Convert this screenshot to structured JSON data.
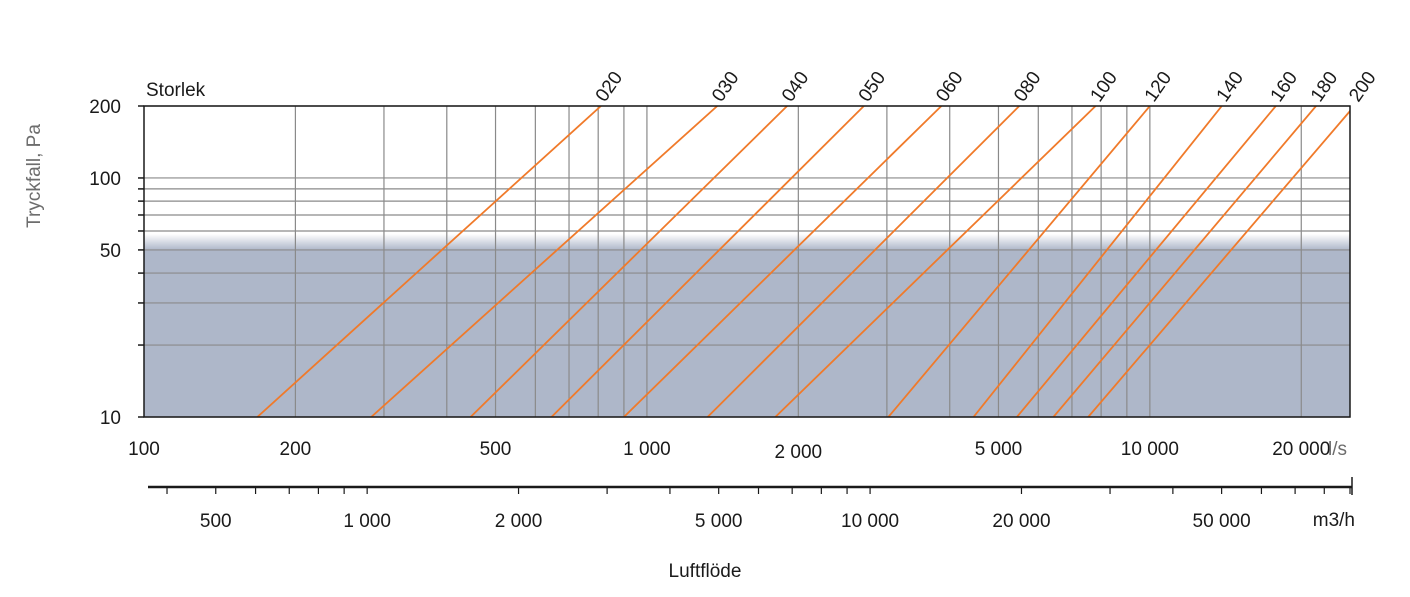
{
  "chart_data": {
    "type": "line",
    "xscale": "log",
    "yscale": "log",
    "ylabel": "Tryckfall, Pa",
    "xlabel": "Luftflöde",
    "series_header": "Storlek",
    "x_unit": "l/s",
    "x2_unit": "m3/h",
    "xlim": [
      100,
      25000
    ],
    "ylim": [
      10,
      200
    ],
    "x_ticks": [
      {
        "value": 100,
        "label": "100"
      },
      {
        "value": 200,
        "label": "200"
      },
      {
        "value": 500,
        "label": "500"
      },
      {
        "value": 1000,
        "label": "1 000"
      },
      {
        "value": 2000,
        "label": "2 000"
      },
      {
        "value": 5000,
        "label": "5 000"
      },
      {
        "value": 10000,
        "label": "10 000"
      },
      {
        "value": 20000,
        "label": "20 000"
      }
    ],
    "x_gridlines": [
      200,
      300,
      400,
      500,
      600,
      700,
      800,
      900,
      1000,
      2000,
      3000,
      4000,
      5000,
      6000,
      7000,
      8000,
      9000,
      10000,
      20000
    ],
    "y_ticks": [
      {
        "value": 10,
        "label": "10"
      },
      {
        "value": 50,
        "label": "50"
      },
      {
        "value": 100,
        "label": "100"
      },
      {
        "value": 200,
        "label": "200"
      }
    ],
    "y_minor_ticks": [
      20,
      30,
      40,
      60,
      70,
      80,
      90
    ],
    "x2_ticks": [
      {
        "value": 500,
        "label": "500"
      },
      {
        "value": 1000,
        "label": "1 000"
      },
      {
        "value": 2000,
        "label": "2 000"
      },
      {
        "value": 5000,
        "label": "5 000"
      },
      {
        "value": 10000,
        "label": "10 000"
      },
      {
        "value": 20000,
        "label": "20 000"
      },
      {
        "value": 50000,
        "label": "50 000"
      }
    ],
    "x2_minor_ticks": [
      400,
      600,
      700,
      800,
      900,
      3000,
      4000,
      6000,
      7000,
      8000,
      9000,
      30000,
      40000,
      60000,
      70000,
      80000,
      90000
    ],
    "shaded_region": {
      "y_from": 10,
      "y_to": 50,
      "color": "#aeb7c9"
    },
    "line_color": "#f07a2a",
    "series": [
      {
        "name": "020",
        "points": [
          [
            168,
            10
          ],
          [
            810,
            200
          ]
        ]
      },
      {
        "name": "030",
        "points": [
          [
            283,
            10
          ],
          [
            1380,
            200
          ]
        ]
      },
      {
        "name": "040",
        "points": [
          [
            446,
            10
          ],
          [
            1900,
            200
          ]
        ]
      },
      {
        "name": "050",
        "points": [
          [
            646,
            10
          ],
          [
            2700,
            200
          ]
        ]
      },
      {
        "name": "060",
        "points": [
          [
            900,
            10
          ],
          [
            3850,
            200
          ]
        ]
      },
      {
        "name": "080",
        "points": [
          [
            1320,
            10
          ],
          [
            5500,
            200
          ]
        ]
      },
      {
        "name": "100",
        "points": [
          [
            1800,
            10
          ],
          [
            7800,
            200
          ]
        ]
      },
      {
        "name": "120",
        "points": [
          [
            3020,
            10
          ],
          [
            10000,
            200
          ]
        ]
      },
      {
        "name": "140",
        "points": [
          [
            4460,
            10
          ],
          [
            13900,
            200
          ]
        ]
      },
      {
        "name": "160",
        "points": [
          [
            5440,
            10
          ],
          [
            17800,
            200
          ]
        ]
      },
      {
        "name": "180",
        "points": [
          [
            6430,
            10
          ],
          [
            21400,
            200
          ]
        ]
      },
      {
        "name": "200",
        "points": [
          [
            7540,
            10
          ],
          [
            25500,
            200
          ]
        ]
      }
    ]
  }
}
